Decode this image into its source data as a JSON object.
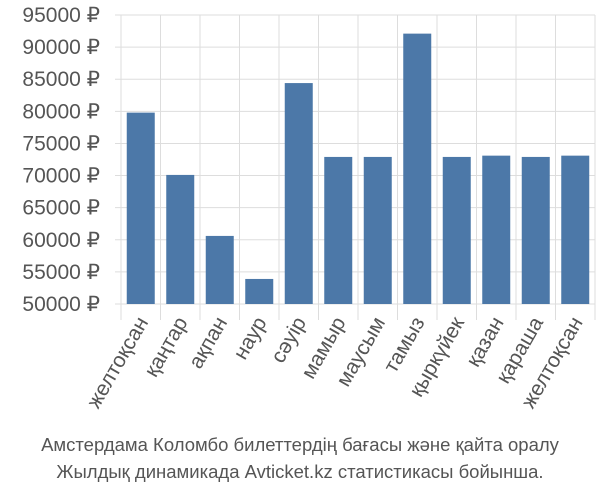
{
  "chart_data": {
    "type": "bar",
    "categories": [
      "желтоқсан",
      "қаңтар",
      "ақпан",
      "наур",
      "сәуір",
      "мамыр",
      "маусым",
      "тамыз",
      "қыркүйек",
      "қазан",
      "қараша",
      "желтоқсан"
    ],
    "values": [
      79800,
      70100,
      60600,
      53900,
      84400,
      72900,
      72900,
      92100,
      72900,
      73100,
      72900,
      73100
    ],
    "yticks": [
      "50000 ₽",
      "55000 ₽",
      "60000 ₽",
      "65000 ₽",
      "70000 ₽",
      "75000 ₽",
      "80000 ₽",
      "85000 ₽",
      "90000 ₽",
      "95000 ₽"
    ],
    "ylim": [
      50000,
      95000
    ],
    "grid": true,
    "bar_color": "#4c78a8",
    "grid_color": "#dddddd",
    "text_color": "#555555"
  },
  "caption": {
    "line1": "Амстердама Коломбо билеттердің бағасы және қайта оралу",
    "line2": "Жылдық динамикада Avticket.kz статистикасы бойынша."
  }
}
